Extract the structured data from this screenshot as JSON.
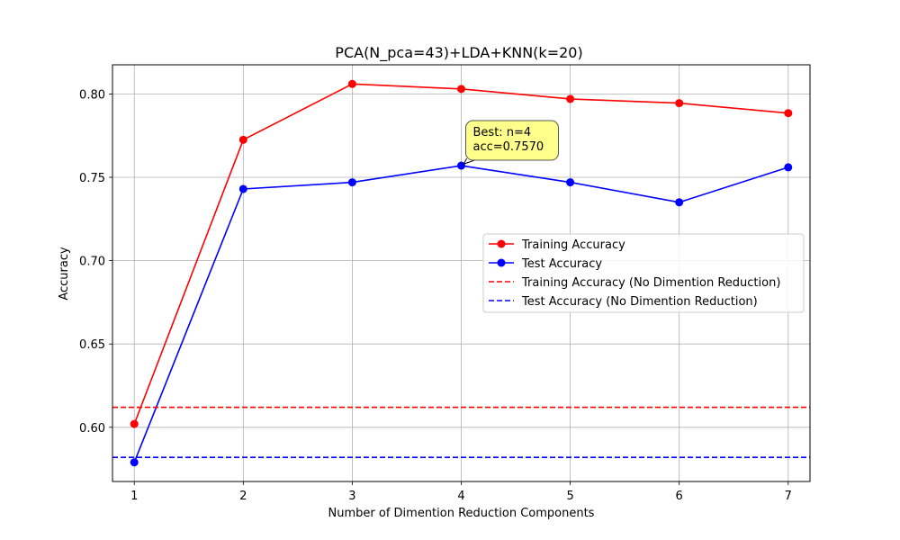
{
  "chart_data": {
    "type": "line",
    "title": "PCA(N_pca=43)+LDA+KNN(k=20)",
    "xlabel": "Number of Dimention Reduction Components",
    "ylabel": "Accuracy",
    "x": [
      1,
      2,
      3,
      4,
      5,
      6,
      7
    ],
    "xlim": [
      0.8,
      7.2
    ],
    "ylim": [
      0.5675,
      0.8175
    ],
    "xticks": [
      1,
      2,
      3,
      4,
      5,
      6,
      7
    ],
    "yticks": [
      0.6,
      0.65,
      0.7,
      0.75,
      0.8
    ],
    "ytick_labels": [
      "0.60",
      "0.65",
      "0.70",
      "0.75",
      "0.80"
    ],
    "grid": true,
    "legend_position": "center-right",
    "series": [
      {
        "name": "Training Accuracy",
        "kind": "line-marker",
        "color": "#ff0000",
        "values": [
          0.602,
          0.7725,
          0.806,
          0.803,
          0.797,
          0.7945,
          0.7885
        ]
      },
      {
        "name": "Test Accuracy",
        "kind": "line-marker",
        "color": "#0000ff",
        "values": [
          0.579,
          0.743,
          0.747,
          0.757,
          0.747,
          0.735,
          0.756
        ]
      },
      {
        "name": "Training Accuracy (No Dimention Reduction)",
        "kind": "hline-dashed",
        "color": "#ff0000",
        "value": 0.612
      },
      {
        "name": "Test Accuracy (No Dimention Reduction)",
        "kind": "hline-dashed",
        "color": "#0000ff",
        "value": 0.582
      }
    ],
    "annotation": {
      "lines": [
        "Best: n=4",
        "acc=0.7570"
      ],
      "target_x": 4,
      "target_y": 0.757,
      "box_color": "#ffff80"
    }
  }
}
